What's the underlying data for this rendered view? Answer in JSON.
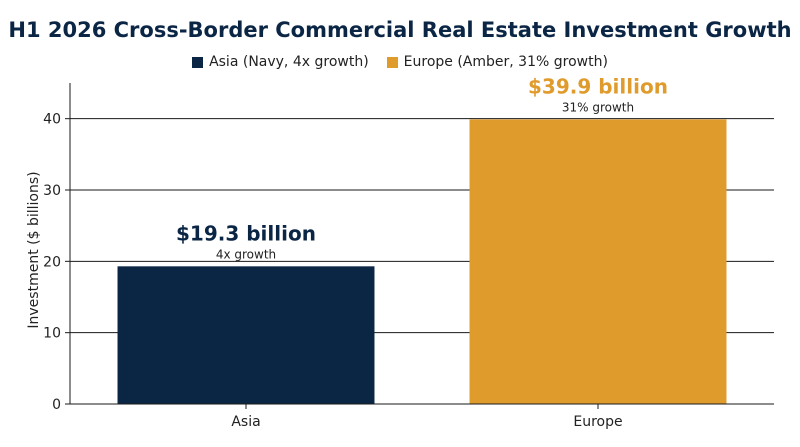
{
  "chart_data": {
    "type": "bar",
    "title": "H1 2026 Cross-Border Commercial Real Estate Investment Growth",
    "ylabel": "Investment ($ billions)",
    "xlabel": "",
    "categories": [
      "Asia",
      "Europe"
    ],
    "values": [
      19.3,
      39.9
    ],
    "ylim": [
      0,
      45
    ],
    "yticks": [
      0,
      10,
      20,
      30,
      40
    ],
    "grid": true,
    "legend_position": "top-center",
    "legend": [
      {
        "label": "Asia (Navy, 4x growth)",
        "color": "#0b2545"
      },
      {
        "label": "Europe (Amber, 31% growth)",
        "color": "#e09b2d"
      }
    ],
    "colors": [
      "#0b2545",
      "#e09b2d"
    ],
    "annotations": [
      {
        "value_label": "$19.3 billion",
        "sub_label": "4x growth",
        "color": "#0b2545"
      },
      {
        "value_label": "$39.9 billion",
        "sub_label": "31% growth",
        "color": "#e09b2d"
      }
    ]
  }
}
